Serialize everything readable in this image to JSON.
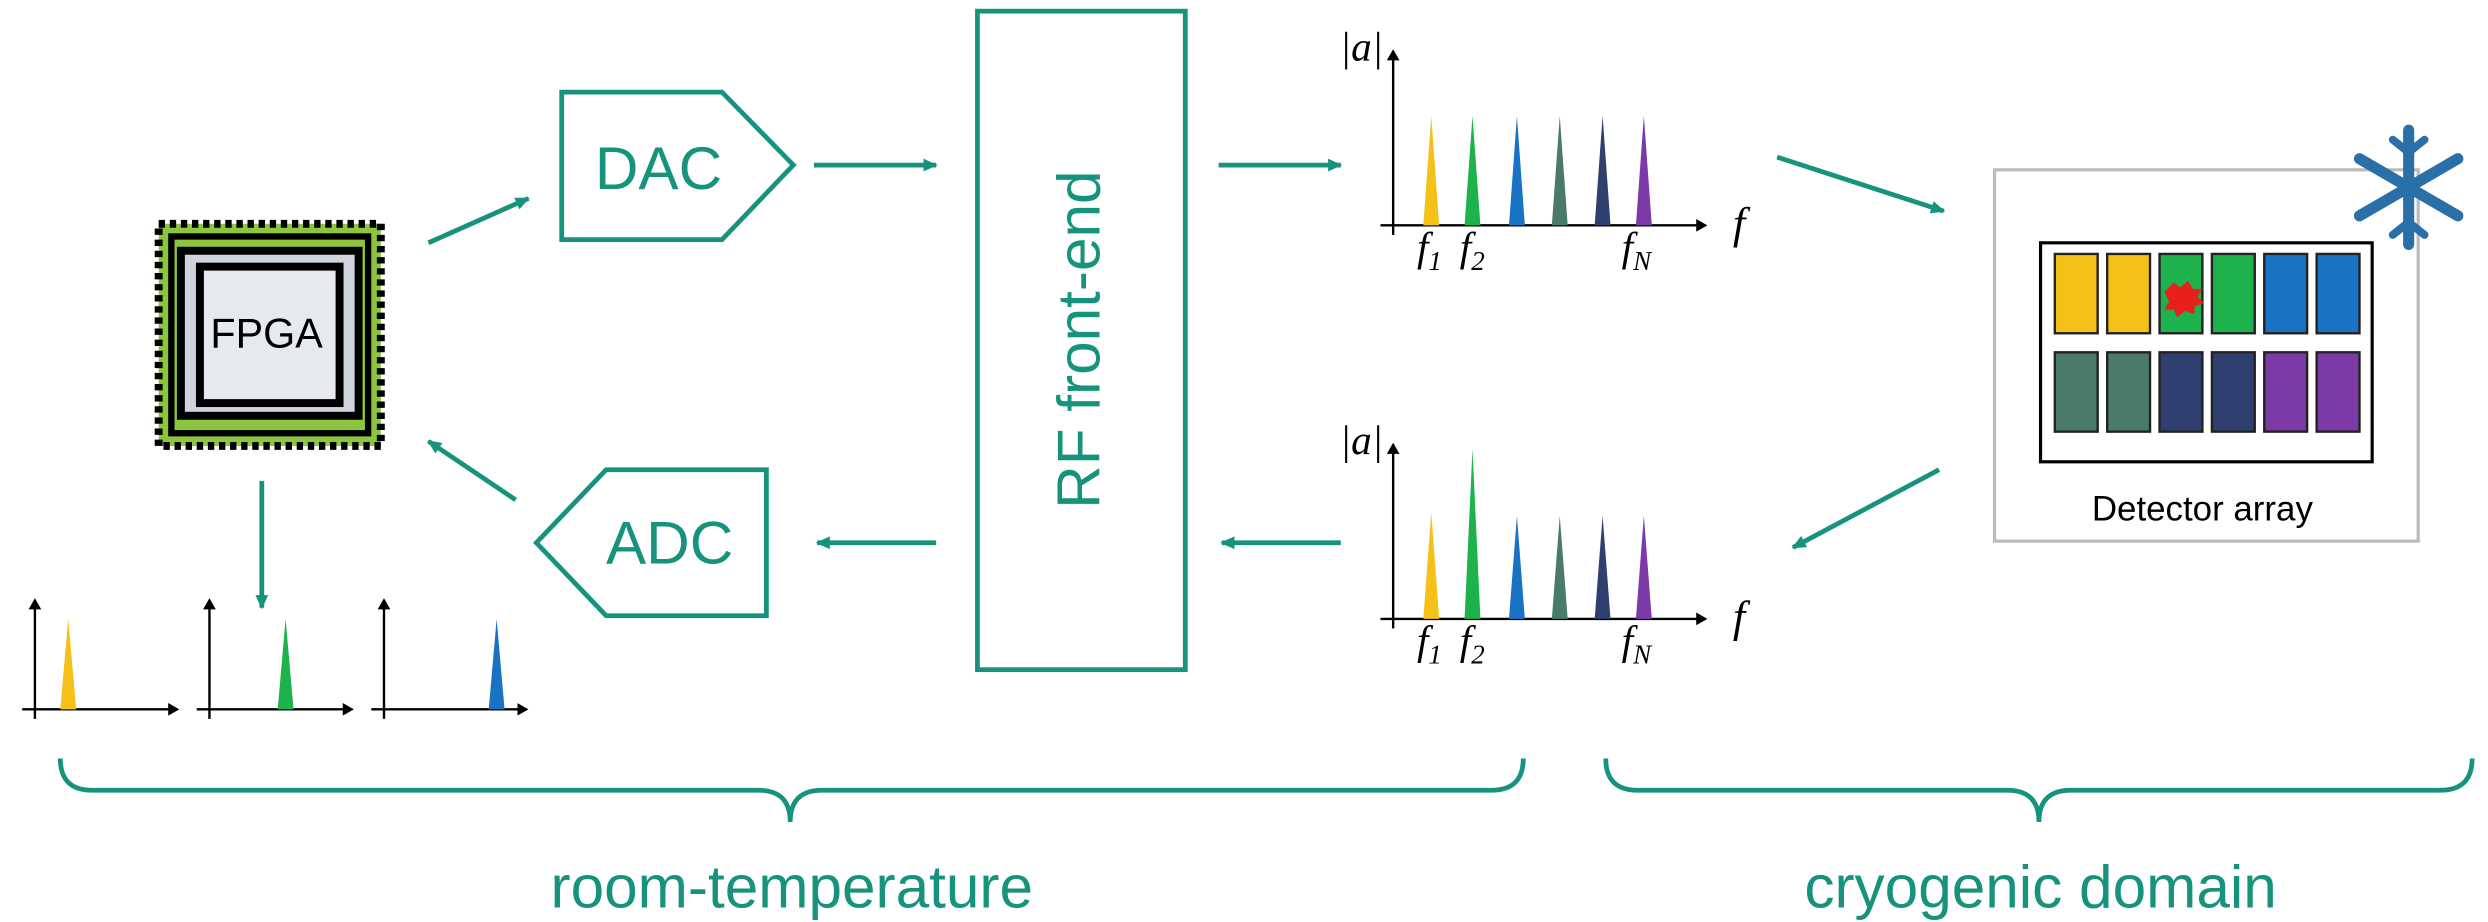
{
  "fpga": {
    "label": "FPGA"
  },
  "dac": {
    "label": "DAC"
  },
  "adc": {
    "label": "ADC"
  },
  "rf_frontend": {
    "label": "RF front-end"
  },
  "spectra": [
    {
      "y_label": "|a|",
      "x_label": "f",
      "freq_labels": [
        {
          "symbol": "f",
          "sub": "1"
        },
        {
          "symbol": "f",
          "sub": "2"
        },
        {
          "symbol": "f",
          "sub": "N"
        }
      ]
    },
    {
      "y_label": "|a|",
      "x_label": "f",
      "freq_labels": [
        {
          "symbol": "f",
          "sub": "1"
        },
        {
          "symbol": "f",
          "sub": "2"
        },
        {
          "symbol": "f",
          "sub": "N"
        }
      ]
    }
  ],
  "detector": {
    "label": "Detector array"
  },
  "domains": [
    {
      "label": "room-temperature"
    },
    {
      "label": "cryogenic domain"
    }
  ]
}
